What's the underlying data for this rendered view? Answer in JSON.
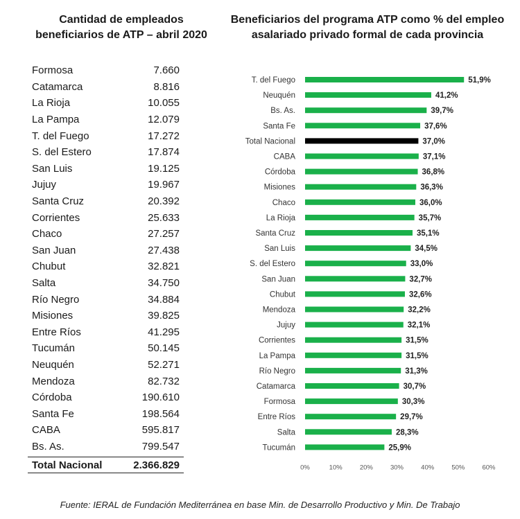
{
  "left": {
    "title_line1": "Cantidad de empleados",
    "title_line2": "beneficiarios de ATP – abril 2020",
    "rows": [
      {
        "name": "Formosa",
        "value": "7.660"
      },
      {
        "name": "Catamarca",
        "value": "8.816"
      },
      {
        "name": "La Rioja",
        "value": "10.055"
      },
      {
        "name": "La Pampa",
        "value": "12.079"
      },
      {
        "name": "T. del Fuego",
        "value": "17.272"
      },
      {
        "name": "S. del Estero",
        "value": "17.874"
      },
      {
        "name": "San Luis",
        "value": "19.125"
      },
      {
        "name": "Jujuy",
        "value": "19.967"
      },
      {
        "name": "Santa Cruz",
        "value": "20.392"
      },
      {
        "name": "Corrientes",
        "value": "25.633"
      },
      {
        "name": "Chaco",
        "value": "27.257"
      },
      {
        "name": "San Juan",
        "value": "27.438"
      },
      {
        "name": "Chubut",
        "value": "32.821"
      },
      {
        "name": "Salta",
        "value": "34.750"
      },
      {
        "name": "Río Negro",
        "value": "34.884"
      },
      {
        "name": "Misiones",
        "value": "39.825"
      },
      {
        "name": "Entre Ríos",
        "value": "41.295"
      },
      {
        "name": "Tucumán",
        "value": "50.145"
      },
      {
        "name": "Neuquén",
        "value": "52.271"
      },
      {
        "name": "Mendoza",
        "value": "82.732"
      },
      {
        "name": "Córdoba",
        "value": "190.610"
      },
      {
        "name": "Santa Fe",
        "value": "198.564"
      },
      {
        "name": "CABA",
        "value": "595.817"
      },
      {
        "name": "Bs. As.",
        "value": "799.547"
      }
    ],
    "total": {
      "name": "Total Nacional",
      "value": "2.366.829"
    }
  },
  "chart_data": {
    "type": "bar",
    "orientation": "horizontal",
    "title_line1": "Beneficiarios del programa ATP como % del empleo",
    "title_line2": "asalariado privado formal de cada provincia",
    "categories": [
      "T. del Fuego",
      "Neuquén",
      "Bs. As.",
      "Santa Fe",
      "Total Nacional",
      "CABA",
      "Córdoba",
      "Misiones",
      "Chaco",
      "La Rioja",
      "Santa Cruz",
      "San Luis",
      "S. del Estero",
      "San Juan",
      "Chubut",
      "Mendoza",
      "Jujuy",
      "Corrientes",
      "La Pampa",
      "Río Negro",
      "Catamarca",
      "Formosa",
      "Entre Ríos",
      "Salta",
      "Tucumán"
    ],
    "values": [
      51.9,
      41.2,
      39.7,
      37.6,
      37.0,
      37.1,
      36.8,
      36.3,
      36.0,
      35.7,
      35.1,
      34.5,
      33.0,
      32.7,
      32.6,
      32.2,
      32.1,
      31.5,
      31.5,
      31.3,
      30.7,
      30.3,
      29.7,
      28.3,
      25.9
    ],
    "value_labels": [
      "51,9%",
      "41,2%",
      "39,7%",
      "37,6%",
      "37,0%",
      "37,1%",
      "36,8%",
      "36,3%",
      "36,0%",
      "35,7%",
      "35,1%",
      "34,5%",
      "33,0%",
      "32,7%",
      "32,6%",
      "32,2%",
      "32,1%",
      "31,5%",
      "31,5%",
      "31,3%",
      "30,7%",
      "30,3%",
      "29,7%",
      "28,3%",
      "25,9%"
    ],
    "highlight_category": "Total Nacional",
    "xlim": [
      0,
      60
    ],
    "x_ticks": [
      "0%",
      "10%",
      "20%",
      "30%",
      "40%",
      "50%",
      "60%"
    ],
    "grid": false,
    "colors": {
      "bar": "#1ab04a",
      "highlight": "#000000"
    }
  },
  "source": "Fuente: IERAL de Fundación Mediterránea en base Min. de Desarrollo Productivo y Min. De Trabajo"
}
